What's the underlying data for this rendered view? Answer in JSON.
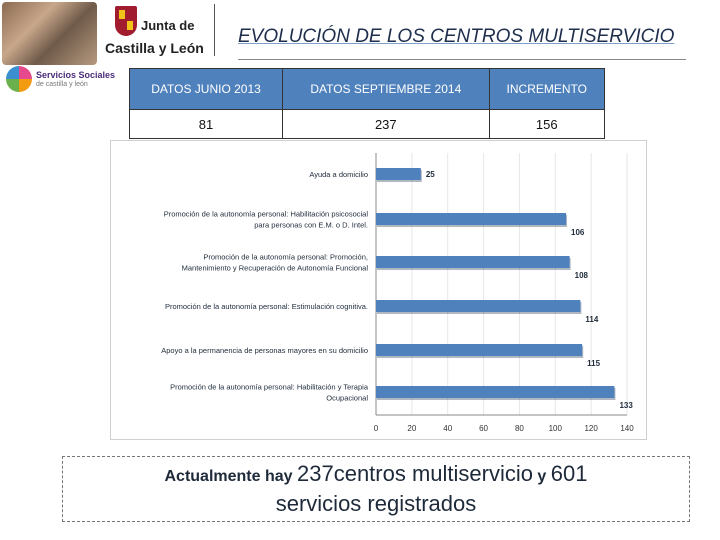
{
  "header": {
    "logo_junta_line1": "Junta de",
    "logo_junta_line2": "Castilla y León",
    "logo_services_line1": "Servicios Sociales",
    "logo_services_line2": "de castilla y león",
    "title": "EVOLUCIÓN DE LOS CENTROS MULTISERVICIO"
  },
  "stats_table": {
    "headers": [
      "DATOS JUNIO 2013",
      "DATOS SEPTIEMBRE 2014",
      "INCREMENTO"
    ],
    "values": [
      "81",
      "237",
      "156"
    ]
  },
  "chart_data": {
    "type": "bar",
    "orientation": "horizontal",
    "categories": [
      "Ayuda a domicilio",
      "Promoción de la autonomía personal: Habilitación psicosocial para personas con E.M. o D. Intel.",
      "Promoción de la autonomía personal: Promoción, Mantenimiento y Recuperación de Autonomía Funcional",
      "Promoción de la autonomía personal: Estimulación cognitiva.",
      "Apoyo a la permanencia de personas mayores en su domicilio",
      "Promoción de la autonomía personal: Habilitación y Terapia Ocupacional"
    ],
    "category_lines": [
      [
        "Ayuda a domicilio"
      ],
      [
        "Promoción de la autonomía personal: Habilitación psicosocial",
        "para personas con E.M. o D. Intel."
      ],
      [
        "Promoción de la autonomía personal: Promoción,",
        "Mantenimiento y Recuperación de Autonomía Funcional"
      ],
      [
        "Promoción de la autonomía personal: Estimulación cognitiva."
      ],
      [
        "Apoyo a la permanencia de personas mayores en su domicilio"
      ],
      [
        "Promoción de la autonomía personal: Habilitación y Terapia",
        "Ocupacional"
      ]
    ],
    "values": [
      25,
      106,
      108,
      114,
      115,
      133
    ],
    "xlim": [
      0,
      140
    ],
    "xticks": [
      0,
      20,
      40,
      60,
      80,
      100,
      120,
      140
    ],
    "title": "",
    "xlabel": "",
    "ylabel": "",
    "bar_color": "#4f81bd",
    "data_labels": true
  },
  "caption": {
    "part1": "Actualmente hay ",
    "count_centers": "237",
    "part2": "centros multiservicio",
    "part3": " y ",
    "count_services": "601",
    "line2": "servicios registrados"
  }
}
